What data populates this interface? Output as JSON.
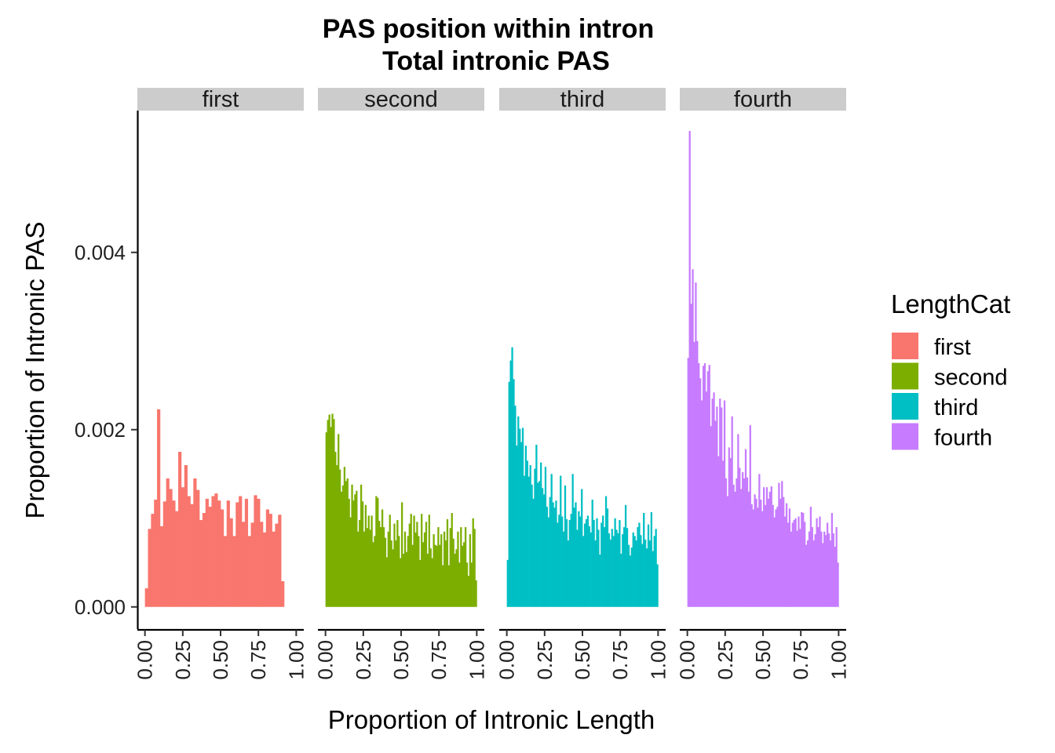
{
  "chart_data": {
    "type": "bar",
    "title": "PAS position within intron",
    "subtitle": "Total intronic PAS",
    "xlabel": "Proportion of Intronic Length",
    "ylabel": "Proportion of Intronic PAS",
    "ylim": [
      -0.00025,
      0.0056
    ],
    "xlim": [
      -0.05,
      1.05
    ],
    "y_ticks": [
      {
        "value": 0.0,
        "label": "0.000"
      },
      {
        "value": 0.002,
        "label": "0.002"
      },
      {
        "value": 0.004,
        "label": "0.004"
      }
    ],
    "x_ticks": [
      {
        "value": 0.0,
        "label": "0.00"
      },
      {
        "value": 0.25,
        "label": "0.25"
      },
      {
        "value": 0.5,
        "label": "0.50"
      },
      {
        "value": 0.75,
        "label": "0.75"
      },
      {
        "value": 1.0,
        "label": "1.00"
      }
    ],
    "bin_width": 0.02,
    "legend": {
      "title": "LengthCat",
      "position": "right"
    },
    "series": [
      {
        "name": "first",
        "color": "#F8766D",
        "values": [
          0.00021,
          0.00088,
          0.00105,
          0.00121,
          0.00223,
          0.00091,
          0.00119,
          0.00145,
          0.00133,
          0.0012,
          0.00108,
          0.00175,
          0.00135,
          0.0016,
          0.00125,
          0.00116,
          0.00145,
          0.00132,
          0.00098,
          0.00106,
          0.00122,
          0.00113,
          0.00125,
          0.00128,
          0.0012,
          0.0011,
          0.0008,
          0.0012,
          0.001,
          0.0008,
          0.00118,
          0.00125,
          0.00096,
          0.00122,
          0.0008,
          0.00095,
          0.00126,
          0.00122,
          0.00096,
          0.00084,
          0.0011,
          0.00105,
          0.00085,
          0.00094,
          0.00104,
          0.00029
        ]
      },
      {
        "name": "second",
        "color": "#7CAE00",
        "values": [
          0.00197,
          0.00211,
          0.00217,
          0.00203,
          0.00218,
          0.00212,
          0.00175,
          0.0016,
          0.00195,
          0.00155,
          0.0013,
          0.00137,
          0.00158,
          0.00142,
          0.00145,
          0.00122,
          0.00101,
          0.00138,
          0.0012,
          0.00127,
          0.00131,
          0.00085,
          0.00098,
          0.00138,
          0.00119,
          0.00085,
          0.00115,
          0.00089,
          0.00103,
          0.00087,
          0.00103,
          0.00073,
          0.0008,
          0.00125,
          0.00123,
          0.00097,
          0.0009,
          0.0011,
          0.0009,
          0.00078,
          0.00056,
          0.00085,
          0.00104,
          0.00075,
          0.00065,
          0.00094,
          0.00075,
          0.00098,
          0.0008,
          0.00055,
          0.00118,
          0.0006,
          0.00085,
          0.00062,
          0.0008,
          0.00094,
          0.00105,
          0.0007,
          0.00103,
          0.00084,
          0.00096,
          0.0008,
          0.00053,
          0.00105,
          0.00073,
          0.00084,
          0.00096,
          0.0006,
          0.00104,
          0.00066,
          0.00055,
          0.00082,
          0.0007,
          0.00069,
          0.0009,
          0.0007,
          0.00082,
          0.00047,
          0.00085,
          0.00075,
          0.00099,
          0.00047,
          0.00089,
          0.00106,
          0.00077,
          0.0006,
          0.00065,
          0.00085,
          0.0005,
          0.0009,
          0.00069,
          0.00073,
          0.0009,
          0.0005,
          0.00035,
          0.00082,
          0.0005,
          0.001,
          0.00088,
          0.0003
        ]
      },
      {
        "name": "third",
        "color": "#00BFC4",
        "values": [
          0.00053,
          0.00254,
          0.00278,
          0.00293,
          0.00257,
          0.00227,
          0.00182,
          0.00215,
          0.00201,
          0.00186,
          0.00202,
          0.00148,
          0.00182,
          0.00165,
          0.00147,
          0.0016,
          0.00138,
          0.00122,
          0.00156,
          0.00183,
          0.0014,
          0.00142,
          0.00163,
          0.00134,
          0.00127,
          0.00158,
          0.00113,
          0.00101,
          0.00124,
          0.0015,
          0.00118,
          0.00112,
          0.0012,
          0.00095,
          0.00104,
          0.00148,
          0.00102,
          0.00085,
          0.00137,
          0.00099,
          0.00075,
          0.00098,
          0.00105,
          0.0015,
          0.00112,
          0.00118,
          0.00087,
          0.00108,
          0.00102,
          0.00133,
          0.0008,
          0.00094,
          0.00099,
          0.00103,
          0.00091,
          0.00084,
          0.00121,
          0.00098,
          0.00075,
          0.001,
          0.00087,
          0.00059,
          0.00095,
          0.00103,
          0.0009,
          0.00125,
          0.00111,
          0.00083,
          0.00076,
          0.00088,
          0.0008,
          0.001,
          0.00087,
          0.00083,
          0.00098,
          0.0006,
          0.00082,
          0.0009,
          0.00115,
          0.00089,
          0.0007,
          0.00058,
          0.00067,
          0.00084,
          0.0008,
          0.00075,
          0.0009,
          0.00095,
          0.00081,
          0.00071,
          0.00106,
          0.00076,
          0.00066,
          0.00093,
          0.00075,
          0.00107,
          0.00063,
          0.0008,
          0.00088,
          0.00048
        ]
      },
      {
        "name": "fourth",
        "color": "#C77CFF",
        "values": [
          0.00281,
          0.00537,
          0.00342,
          0.00381,
          0.00299,
          0.00366,
          0.003,
          0.00275,
          0.00258,
          0.00233,
          0.00272,
          0.00275,
          0.00243,
          0.00266,
          0.00273,
          0.00204,
          0.00235,
          0.00242,
          0.0021,
          0.00226,
          0.0017,
          0.00235,
          0.00225,
          0.00165,
          0.00233,
          0.00145,
          0.00125,
          0.0018,
          0.00168,
          0.00215,
          0.00138,
          0.0013,
          0.00145,
          0.00195,
          0.00157,
          0.00133,
          0.00152,
          0.00145,
          0.00178,
          0.00146,
          0.0013,
          0.00205,
          0.00116,
          0.0011,
          0.00127,
          0.00122,
          0.00112,
          0.0015,
          0.00121,
          0.00108,
          0.00135,
          0.00115,
          0.00135,
          0.00122,
          0.0013,
          0.00136,
          0.00115,
          0.00101,
          0.0011,
          0.00113,
          0.0014,
          0.00122,
          0.00142,
          0.00124,
          0.00102,
          0.00117,
          0.00095,
          0.00111,
          0.00085,
          0.00095,
          0.00098,
          0.001,
          0.00086,
          0.00102,
          0.00088,
          0.00107,
          0.00106,
          0.00096,
          0.0007,
          0.00075,
          0.00085,
          0.00113,
          0.0009,
          0.00075,
          0.00082,
          0.001,
          0.0009,
          0.00102,
          0.00085,
          0.00072,
          0.00085,
          0.00081,
          0.00095,
          0.00083,
          0.00075,
          0.00106,
          0.00083,
          0.00068,
          0.0009,
          0.0005
        ]
      }
    ]
  }
}
